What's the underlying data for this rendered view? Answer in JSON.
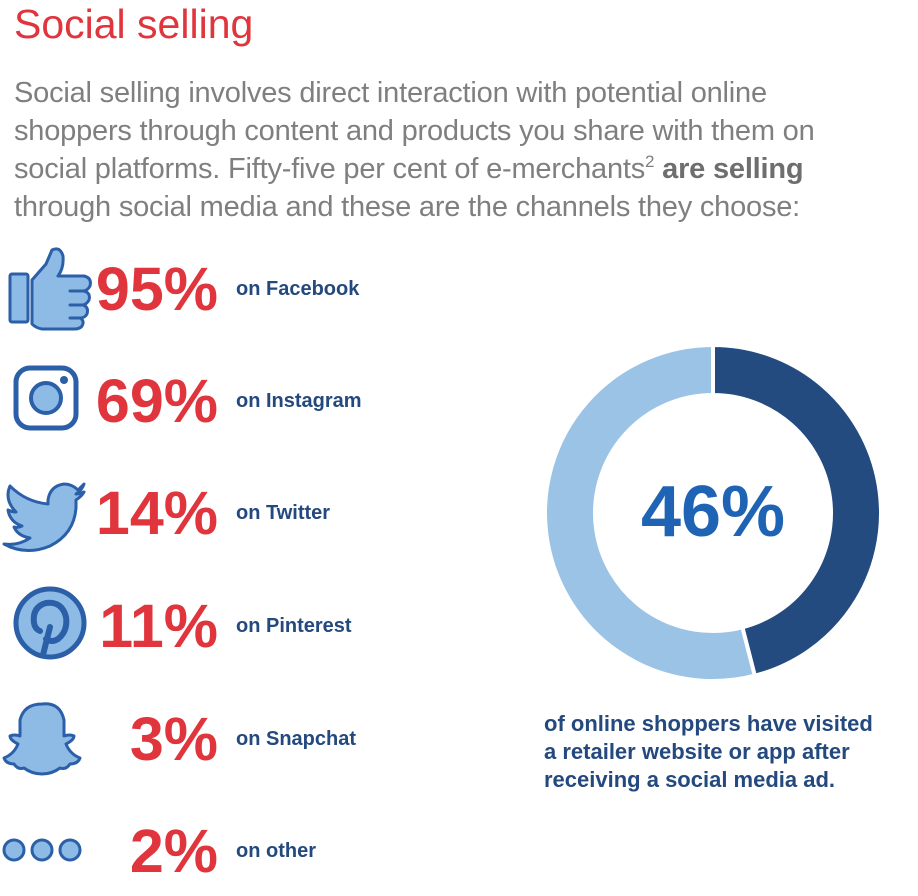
{
  "title": "Social selling",
  "intro": {
    "line1": "Social selling involves direct interaction with potential online",
    "line2": "shoppers through content and products you share with them on",
    "line3_a": "social platforms. Fifty-five per cent of e-merchants",
    "line3_sup": "2",
    "line3_b": " are selling",
    "line4": "through social media and these are the channels they choose:"
  },
  "chart_data": [
    {
      "type": "bar",
      "categories": [
        "on Facebook",
        "on Instagram",
        "on Twitter",
        "on Pinterest",
        "on Snapchat",
        "on other"
      ],
      "values": [
        95,
        69,
        14,
        11,
        3,
        2
      ],
      "value_labels": [
        "95%",
        "69%",
        "14%",
        "11%",
        "3%",
        "2%"
      ],
      "icons": [
        "thumbs-up-icon",
        "instagram-icon",
        "twitter-bird-icon",
        "pinterest-icon",
        "snapchat-ghost-icon",
        "three-dots-icon"
      ]
    },
    {
      "type": "pie",
      "values": [
        46,
        54
      ],
      "center_label": "46%",
      "caption": [
        "of online shoppers have visited",
        "a retailer website or app after",
        "receiving a social media ad."
      ],
      "colors": [
        "#234b80",
        "#9bc3e6"
      ]
    }
  ],
  "colors": {
    "accent_red": "#e0353c",
    "navy": "#24497e",
    "icon_blue": "#2b5fa8",
    "icon_light": "#8dbbe6",
    "center_blue": "#1f64b4",
    "body_grey": "#7f7f7f"
  }
}
